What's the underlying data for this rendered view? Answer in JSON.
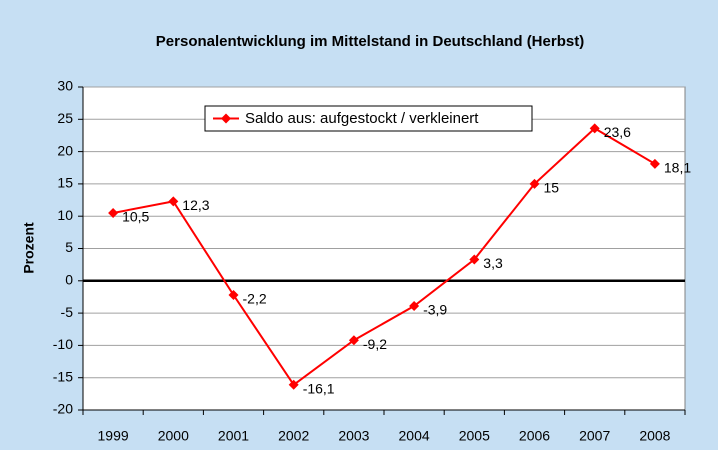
{
  "chart_data": {
    "type": "line",
    "title": "Personalentwicklung im Mittelstand in Deutschland (Herbst)",
    "y_label": "Prozent",
    "categories": [
      "1999",
      "2000",
      "2001",
      "2002",
      "2003",
      "2004",
      "2005",
      "2006",
      "2007",
      "2008"
    ],
    "series": [
      {
        "name": "Saldo aus: aufgestockt / verkleinert",
        "color": "#ff0000",
        "values": [
          10.5,
          12.3,
          -2.2,
          -16.1,
          -9.2,
          -3.9,
          3.3,
          15,
          23.6,
          18.1
        ],
        "value_labels": [
          "10,5",
          "12,3",
          "-2,2",
          "-16,1",
          "-9,2",
          "-3,9",
          "3,3",
          "15",
          "23,6",
          "18,1"
        ]
      }
    ],
    "ylim": [
      -20,
      30
    ],
    "yticks": [
      -20,
      -15,
      -10,
      -5,
      0,
      5,
      10,
      15,
      20,
      25,
      30
    ],
    "grid": true,
    "legend": "top"
  }
}
